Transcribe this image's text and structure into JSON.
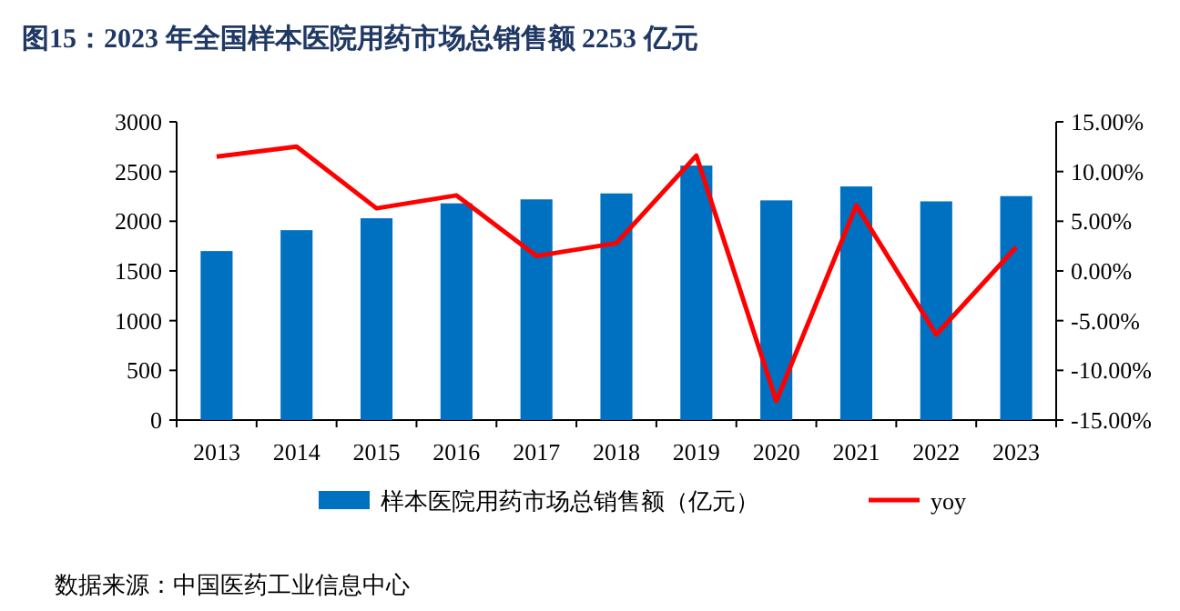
{
  "chart_data": {
    "type": "bar",
    "title": "图15：2023 年全国样本医院用药市场总销售额 2253 亿元",
    "categories": [
      "2013",
      "2014",
      "2015",
      "2016",
      "2017",
      "2018",
      "2019",
      "2020",
      "2021",
      "2022",
      "2023"
    ],
    "series": [
      {
        "name": "样本医院用药市场总销售额（亿元）",
        "color": "#0070c0",
        "values": [
          1700,
          1910,
          2030,
          2180,
          2220,
          2280,
          2560,
          2210,
          2350,
          2200,
          2253
        ]
      },
      {
        "name": "yoy",
        "type": "line",
        "axis": "y2",
        "color": "#ff0000",
        "values": [
          11.5,
          12.5,
          6.3,
          7.6,
          1.5,
          2.8,
          11.6,
          -13.1,
          6.6,
          -6.4,
          2.4
        ]
      }
    ],
    "ylim": [
      0,
      3000
    ],
    "yticks": [
      0,
      500,
      1000,
      1500,
      2000,
      2500,
      3000
    ],
    "y2lim": [
      -15,
      15
    ],
    "y2ticks": [
      {
        "value": -15,
        "label": "-15.00%"
      },
      {
        "value": -10,
        "label": "-10.00%"
      },
      {
        "value": -5,
        "label": "-5.00%"
      },
      {
        "value": 0,
        "label": "0.00%"
      },
      {
        "value": 5,
        "label": "5.00%"
      },
      {
        "value": 10,
        "label": "10.00%"
      },
      {
        "value": 15,
        "label": "15.00%"
      }
    ],
    "grid": false,
    "legend": "bottom",
    "marker": "none",
    "line_style": "solid",
    "annotations": [
      "数据来源：中国医药工业信息中心"
    ]
  }
}
